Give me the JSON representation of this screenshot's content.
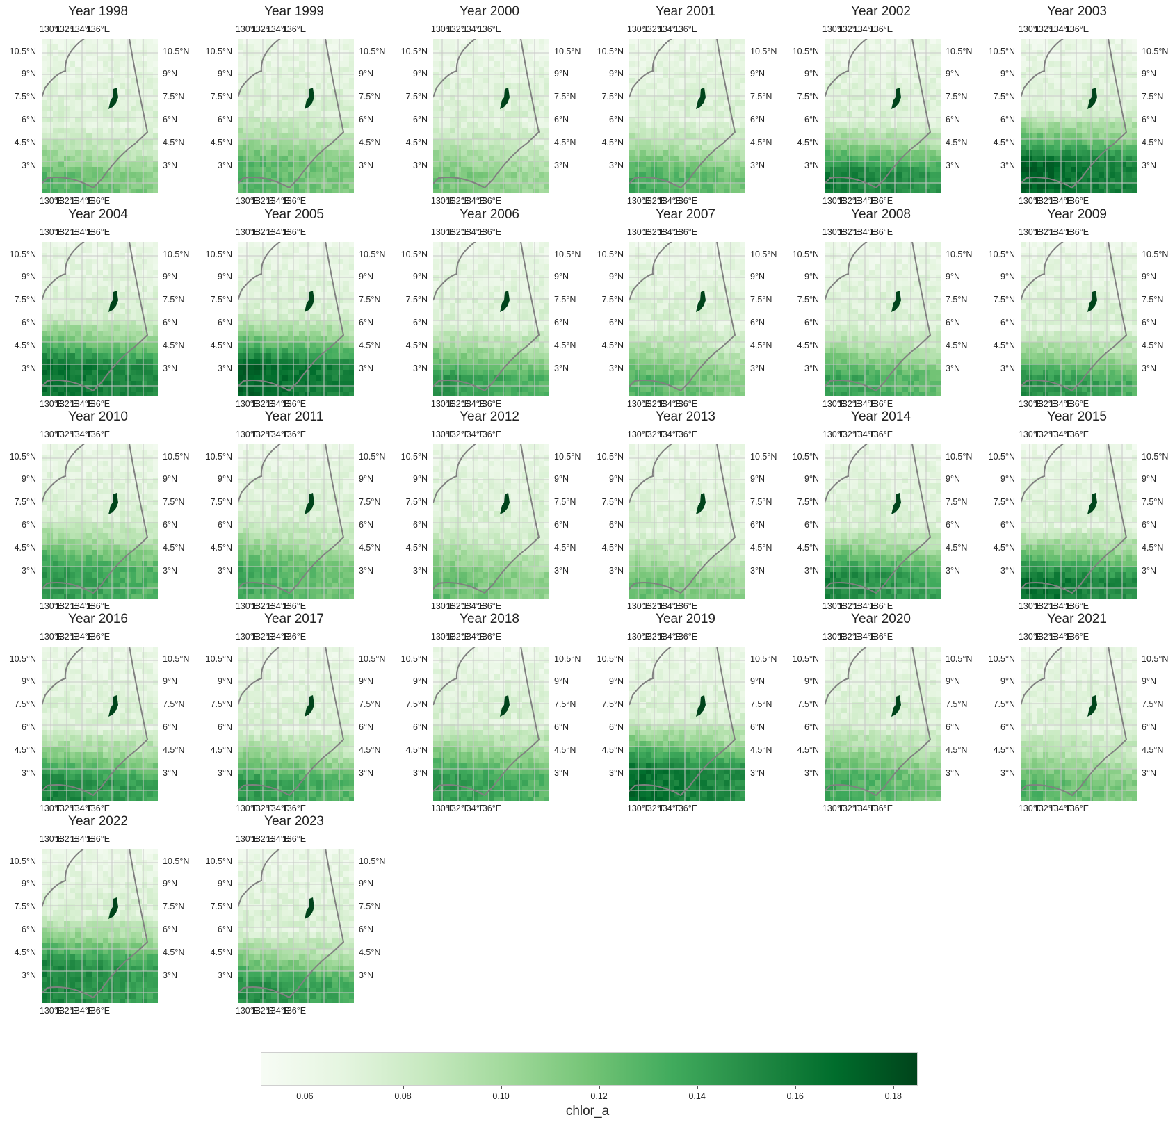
{
  "panels": [
    {
      "title": "Year 1998",
      "level": 0.55,
      "edge": 0.65
    },
    {
      "title": "Year 1999",
      "level": 0.55,
      "edge": 0.55
    },
    {
      "title": "Year 2000",
      "level": 0.45,
      "edge": 0.62
    },
    {
      "title": "Year 2001",
      "level": 0.6,
      "edge": 0.62
    },
    {
      "title": "Year 2002",
      "level": 0.85,
      "edge": 0.62
    },
    {
      "title": "Year 2003",
      "level": 0.95,
      "edge": 0.55
    },
    {
      "title": "Year 2004",
      "level": 0.9,
      "edge": 0.55
    },
    {
      "title": "Year 2005",
      "level": 0.95,
      "edge": 0.55
    },
    {
      "title": "Year 2006",
      "level": 0.7,
      "edge": 0.62
    },
    {
      "title": "Year 2007",
      "level": 0.55,
      "edge": 0.62
    },
    {
      "title": "Year 2008",
      "level": 0.65,
      "edge": 0.62
    },
    {
      "title": "Year 2009",
      "level": 0.75,
      "edge": 0.65
    },
    {
      "title": "Year 2010",
      "level": 0.7,
      "edge": 0.55
    },
    {
      "title": "Year 2011",
      "level": 0.6,
      "edge": 0.55
    },
    {
      "title": "Year 2012",
      "level": 0.5,
      "edge": 0.6
    },
    {
      "title": "Year 2013",
      "level": 0.5,
      "edge": 0.65
    },
    {
      "title": "Year 2014",
      "level": 0.8,
      "edge": 0.6
    },
    {
      "title": "Year 2015",
      "level": 0.9,
      "edge": 0.62
    },
    {
      "title": "Year 2016",
      "level": 0.8,
      "edge": 0.62
    },
    {
      "title": "Year 2017",
      "level": 0.7,
      "edge": 0.62
    },
    {
      "title": "Year 2018",
      "level": 0.7,
      "edge": 0.58
    },
    {
      "title": "Year 2019",
      "level": 0.9,
      "edge": 0.55
    },
    {
      "title": "Year 2020",
      "level": 0.6,
      "edge": 0.58
    },
    {
      "title": "Year 2021",
      "level": 0.55,
      "edge": 0.62
    },
    {
      "title": "Year 2022",
      "level": 0.8,
      "edge": 0.5
    },
    {
      "title": "Year 2023",
      "level": 0.75,
      "edge": 0.62
    }
  ],
  "lon_ticks": [
    "130°E",
    "132°E",
    "134°E",
    "136°E"
  ],
  "lat_ticks": [
    "10.5°N",
    "9°N",
    "7.5°N",
    "6°N",
    "4.5°N",
    "3°N"
  ],
  "colorbar": {
    "label": "chlor_a",
    "ticks": [
      "0.06",
      "0.08",
      "0.10",
      "0.12",
      "0.14",
      "0.16",
      "0.18"
    ],
    "min": 0.051,
    "max": 0.185,
    "colormap": "Greens",
    "colors": [
      "#f7fcf5",
      "#e5f5e0",
      "#c7e9c0",
      "#a1d99b",
      "#74c476",
      "#41ab5d",
      "#238b45",
      "#006d2c",
      "#00441b"
    ]
  },
  "boundary_color": "#808080",
  "island_color": "#00441b"
}
